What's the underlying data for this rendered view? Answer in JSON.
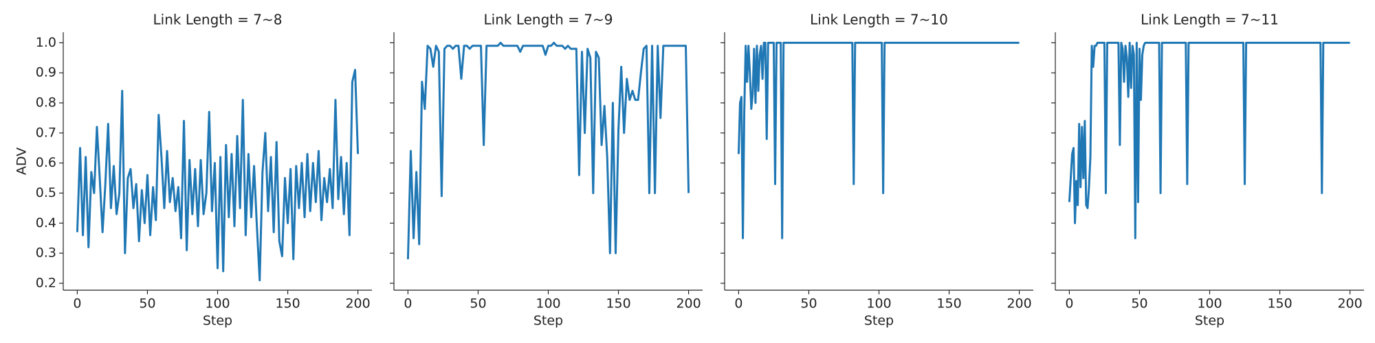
{
  "chart_data": [
    {
      "type": "line",
      "title": "Link Length = 7~8",
      "xlabel": "Step",
      "ylabel": "ADV",
      "color": "#1f77b4",
      "xlim": [
        -10,
        210
      ],
      "xticks": [
        0,
        50,
        100,
        150,
        200
      ],
      "ylim": [
        0.177,
        1.035
      ],
      "yticks": [
        0.2,
        0.3,
        0.4,
        0.5,
        0.6,
        0.7,
        0.8,
        0.9,
        {
          "value": 1,
          "label": "1.0"
        }
      ],
      "x": [
        0,
        2,
        4,
        6,
        8,
        10,
        12,
        14,
        16,
        18,
        20,
        22,
        24,
        26,
        28,
        30,
        32,
        34,
        36,
        38,
        40,
        42,
        44,
        46,
        48,
        50,
        52,
        54,
        56,
        58,
        60,
        62,
        64,
        66,
        68,
        70,
        72,
        74,
        76,
        78,
        80,
        82,
        84,
        86,
        88,
        90,
        92,
        94,
        96,
        98,
        100,
        102,
        104,
        106,
        108,
        110,
        112,
        114,
        116,
        118,
        120,
        122,
        124,
        126,
        128,
        130,
        132,
        134,
        136,
        138,
        140,
        142,
        144,
        146,
        148,
        150,
        152,
        154,
        156,
        158,
        160,
        162,
        164,
        166,
        168,
        170,
        172,
        174,
        176,
        178,
        180,
        182,
        184,
        186,
        188,
        190,
        192,
        194,
        196,
        198,
        200
      ],
      "values": [
        0.37,
        0.65,
        0.36,
        0.62,
        0.32,
        0.57,
        0.5,
        0.72,
        0.55,
        0.37,
        0.53,
        0.73,
        0.45,
        0.59,
        0.43,
        0.5,
        0.84,
        0.3,
        0.55,
        0.58,
        0.45,
        0.53,
        0.34,
        0.51,
        0.4,
        0.56,
        0.36,
        0.52,
        0.41,
        0.76,
        0.62,
        0.45,
        0.64,
        0.47,
        0.55,
        0.44,
        0.52,
        0.35,
        0.74,
        0.31,
        0.61,
        0.43,
        0.58,
        0.39,
        0.61,
        0.43,
        0.5,
        0.77,
        0.44,
        0.6,
        0.25,
        0.62,
        0.24,
        0.66,
        0.42,
        0.63,
        0.39,
        0.69,
        0.45,
        0.81,
        0.36,
        0.63,
        0.42,
        0.59,
        0.39,
        0.21,
        0.57,
        0.7,
        0.44,
        0.62,
        0.37,
        0.67,
        0.34,
        0.29,
        0.55,
        0.4,
        0.58,
        0.28,
        0.59,
        0.45,
        0.6,
        0.42,
        0.63,
        0.44,
        0.6,
        0.47,
        0.64,
        0.41,
        0.55,
        0.47,
        0.58,
        0.45,
        0.81,
        0.48,
        0.62,
        0.43,
        0.6,
        0.36,
        0.87,
        0.91,
        0.63
      ]
    },
    {
      "type": "line",
      "title": "Link Length = 7~9",
      "xlabel": "Step",
      "color": "#1f77b4",
      "xlim": [
        -10,
        210
      ],
      "xticks": [
        0,
        50,
        100,
        150,
        200
      ],
      "ylim": [
        0.177,
        1.035
      ],
      "yticks": [
        0.2,
        0.3,
        0.4,
        0.5,
        0.6,
        0.7,
        0.8,
        0.9,
        1
      ],
      "x": [
        0,
        2,
        4,
        6,
        8,
        10,
        12,
        14,
        16,
        18,
        20,
        22,
        24,
        26,
        28,
        30,
        32,
        34,
        36,
        38,
        40,
        42,
        44,
        46,
        48,
        50,
        52,
        54,
        56,
        58,
        60,
        62,
        64,
        66,
        68,
        70,
        72,
        74,
        76,
        78,
        80,
        82,
        84,
        86,
        88,
        90,
        92,
        94,
        96,
        98,
        100,
        102,
        104,
        106,
        108,
        110,
        112,
        114,
        116,
        118,
        120,
        122,
        124,
        126,
        128,
        130,
        132,
        134,
        136,
        138,
        140,
        142,
        144,
        146,
        148,
        150,
        152,
        154,
        156,
        158,
        160,
        162,
        164,
        166,
        168,
        170,
        172,
        174,
        176,
        178,
        180,
        182,
        184,
        186,
        188,
        190,
        192,
        194,
        196,
        198,
        200
      ],
      "values": [
        0.28,
        0.64,
        0.35,
        0.57,
        0.33,
        0.87,
        0.78,
        0.99,
        0.98,
        0.92,
        0.99,
        0.97,
        0.49,
        0.98,
        0.99,
        0.99,
        0.98,
        0.99,
        0.99,
        0.88,
        0.99,
        0.99,
        0.98,
        0.99,
        0.99,
        0.99,
        0.99,
        0.66,
        0.99,
        0.99,
        0.99,
        0.99,
        0.99,
        1.0,
        0.99,
        0.99,
        0.99,
        0.99,
        0.99,
        0.99,
        0.97,
        0.99,
        0.99,
        0.99,
        0.99,
        0.99,
        0.99,
        0.99,
        0.99,
        0.96,
        0.99,
        0.99,
        1.0,
        0.99,
        0.99,
        0.99,
        0.98,
        0.99,
        0.98,
        0.98,
        0.98,
        0.56,
        0.97,
        0.7,
        0.98,
        0.95,
        0.5,
        0.97,
        0.95,
        0.66,
        0.79,
        0.62,
        0.3,
        0.8,
        0.3,
        0.71,
        0.92,
        0.7,
        0.88,
        0.81,
        0.84,
        0.81,
        0.81,
        0.9,
        0.98,
        0.99,
        0.5,
        0.99,
        0.5,
        0.99,
        0.75,
        0.99,
        0.99,
        0.99,
        0.99,
        0.99,
        0.99,
        0.99,
        0.99,
        0.99,
        0.5
      ]
    },
    {
      "type": "line",
      "title": "Link Length = 7~10",
      "xlabel": "Step",
      "color": "#1f77b4",
      "xlim": [
        -10,
        210
      ],
      "xticks": [
        0,
        50,
        100,
        150,
        200
      ],
      "ylim": [
        0.177,
        1.035
      ],
      "yticks": [
        0.2,
        0.3,
        0.4,
        0.5,
        0.6,
        0.7,
        0.8,
        0.9,
        1
      ],
      "x": [
        0,
        1,
        2,
        3,
        4,
        5,
        6,
        7,
        8,
        9,
        10,
        11,
        12,
        13,
        14,
        15,
        16,
        17,
        18,
        19,
        20,
        21,
        22,
        25,
        26,
        27,
        30,
        31,
        32,
        81,
        82,
        83,
        102,
        103,
        104,
        200
      ],
      "values": [
        0.63,
        0.8,
        0.82,
        0.35,
        0.77,
        0.99,
        0.87,
        0.99,
        0.9,
        0.78,
        0.83,
        0.98,
        0.8,
        0.99,
        0.84,
        0.96,
        0.99,
        0.88,
        1.0,
        1.0,
        0.68,
        1.0,
        1.0,
        1.0,
        0.53,
        1.0,
        1.0,
        0.35,
        1.0,
        1.0,
        0.53,
        1.0,
        1.0,
        0.5,
        1.0,
        1.0
      ]
    },
    {
      "type": "line",
      "title": "Link Length = 7~11",
      "xlabel": "Step",
      "color": "#1f77b4",
      "xlim": [
        -10,
        210
      ],
      "xticks": [
        0,
        50,
        100,
        150,
        200
      ],
      "ylim": [
        0.177,
        1.035
      ],
      "yticks": [
        0.2,
        0.3,
        0.4,
        0.5,
        0.6,
        0.7,
        0.8,
        0.9,
        1
      ],
      "x": [
        0,
        1,
        2,
        3,
        4,
        5,
        6,
        7,
        8,
        9,
        10,
        11,
        12,
        13,
        14,
        15,
        16,
        17,
        18,
        19,
        20,
        25,
        26,
        27,
        35,
        36,
        37,
        38,
        39,
        40,
        41,
        42,
        43,
        44,
        45,
        46,
        47,
        48,
        49,
        50,
        51,
        52,
        53,
        54,
        64,
        65,
        66,
        83,
        84,
        85,
        124,
        125,
        126,
        179,
        180,
        181,
        200
      ],
      "values": [
        0.47,
        0.55,
        0.63,
        0.65,
        0.4,
        0.54,
        0.46,
        0.73,
        0.52,
        0.72,
        0.55,
        0.74,
        0.46,
        0.45,
        0.52,
        0.62,
        0.99,
        0.92,
        0.99,
        0.99,
        1.0,
        1.0,
        0.5,
        1.0,
        1.0,
        0.66,
        1.0,
        0.98,
        0.87,
        0.99,
        0.95,
        0.82,
        1.0,
        0.85,
        0.99,
        0.96,
        0.35,
        1.0,
        0.47,
        0.98,
        0.81,
        0.96,
        0.99,
        1.0,
        1.0,
        0.5,
        1.0,
        1.0,
        0.53,
        1.0,
        1.0,
        0.53,
        1.0,
        1.0,
        0.5,
        1.0,
        1.0
      ]
    }
  ]
}
